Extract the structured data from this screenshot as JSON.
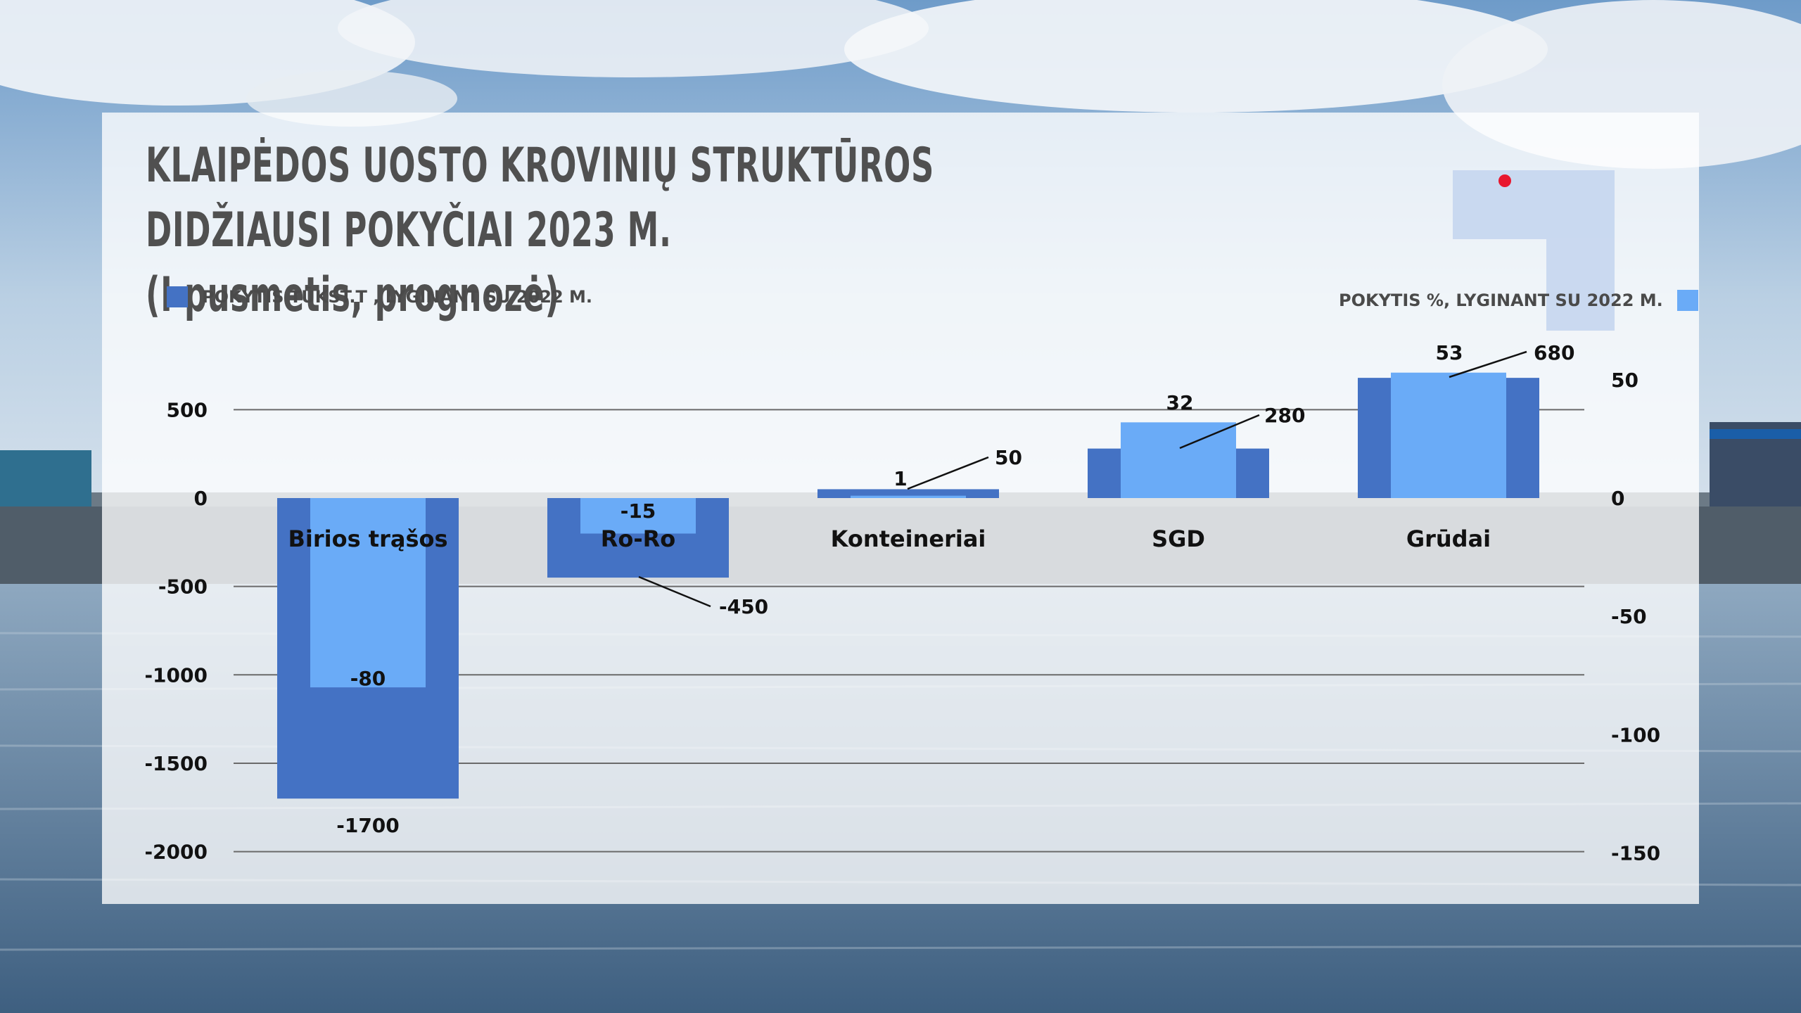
{
  "title_line1": "KLAIPĖDOS UOSTO KROVINIŲ STRUKTŪROS DIDŽIAUSI POKYČIAI 2023 M.",
  "title_line2": "(I pusmetis, prognozė)",
  "colors": {
    "dark_series": "#4472c4",
    "light_series": "#6aabf7",
    "accent_dot": "#e8172e",
    "axis_text": "#111111",
    "legend_text": "#4a4a4a",
    "decor_block": "#c5d6ee"
  },
  "legend": {
    "left": "POKYTIS TŪKST.T , LYGINANT SU 2022 M.",
    "right": "POKYTIS %, LYGINANT SU 2022 M."
  },
  "chart_data": {
    "type": "bar",
    "categories": [
      "Birios trąšos",
      "Ro-Ro",
      "Konteineriai",
      "SGD",
      "Grūdai"
    ],
    "series": [
      {
        "name": "POKYTIS TŪKST.T , LYGINANT SU 2022 M.",
        "axis": "left",
        "values": [
          -1700,
          -450,
          50,
          280,
          680
        ],
        "color": "#4472c4"
      },
      {
        "name": "POKYTIS %, LYGINANT SU 2022 M.",
        "axis": "right",
        "values": [
          -80,
          -15,
          1,
          32,
          53
        ],
        "color": "#6aabf7"
      }
    ],
    "left_axis": {
      "ylim": [
        -2000,
        500
      ],
      "ticks": [
        500,
        0,
        -500,
        -1000,
        -1500,
        -2000
      ]
    },
    "right_axis": {
      "ylim": [
        -150,
        50
      ],
      "ticks": [
        50,
        0,
        -50,
        -100,
        -150
      ]
    },
    "legend_position": "top",
    "grid": true
  }
}
